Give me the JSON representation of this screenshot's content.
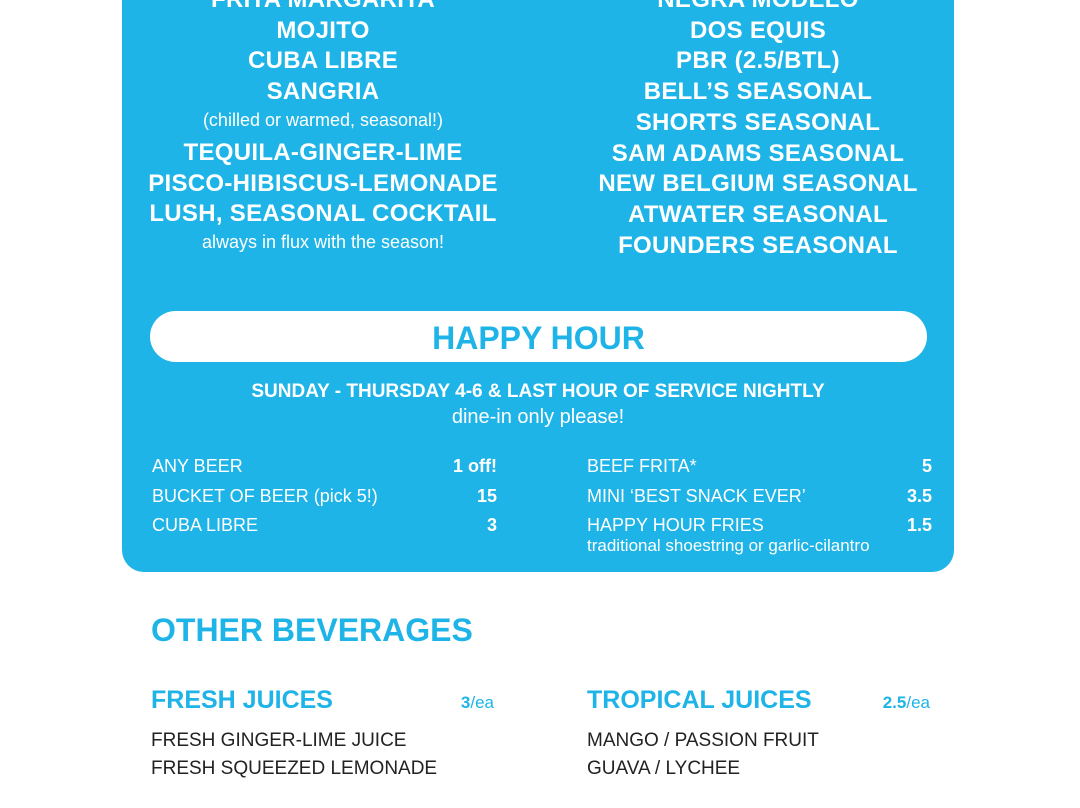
{
  "cocktails": {
    "items": [
      {
        "name": "FRITA MARGARITA"
      },
      {
        "name": "MOJITO"
      },
      {
        "name": "CUBA LIBRE"
      },
      {
        "name": "SANGRIA",
        "note": "(chilled or warmed, seasonal!)"
      },
      {
        "name": "TEQUILA-GINGER-LIME"
      },
      {
        "name": "PISCO-HIBISCUS-LEMONADE"
      },
      {
        "name": "LUSH, SEASONAL COCKTAIL",
        "note": "always in flux with the season!"
      }
    ]
  },
  "beers": [
    "NEGRA MODELO",
    "DOS EQUIS",
    "PBR (2.5/BTL)",
    "BELL’S SEASONAL",
    "SHORTS SEASONAL",
    "SAM ADAMS SEASONAL",
    "NEW BELGIUM SEASONAL",
    "ATWATER SEASONAL",
    "FOUNDERS SEASONAL"
  ],
  "happy_hour": {
    "title": "HAPPY HOUR",
    "schedule": "SUNDAY - THURSDAY 4-6 & LAST HOUR OF SERVICE NIGHTLY",
    "note": "dine-in only please!",
    "drinks": [
      {
        "name": "ANY BEER",
        "price": "1 off!"
      },
      {
        "name": "BUCKET OF BEER (pick 5!)",
        "price": "15"
      },
      {
        "name": "CUBA LIBRE",
        "price": "3"
      }
    ],
    "food": [
      {
        "name": "BEEF FRITA*",
        "price": "5"
      },
      {
        "name": "MINI ‘BEST SNACK EVER’",
        "price": "3.5"
      },
      {
        "name": "HAPPY HOUR FRIES",
        "price": "1.5",
        "desc": "traditional shoestring or garlic-cilantro"
      }
    ]
  },
  "other": {
    "title": "OTHER BEVERAGES",
    "fresh": {
      "title": "FRESH JUICES",
      "price": "3",
      "unit": "/ea",
      "items": [
        "FRESH GINGER-LIME JUICE",
        "FRESH SQUEEZED LEMONADE"
      ]
    },
    "tropical": {
      "title": "TROPICAL JUICES",
      "price": "2.5",
      "unit": "/ea",
      "items": [
        "MANGO / PASSION FRUIT",
        "GUAVA / LYCHEE"
      ]
    }
  },
  "colors": {
    "brand": "#1eb4e7"
  }
}
